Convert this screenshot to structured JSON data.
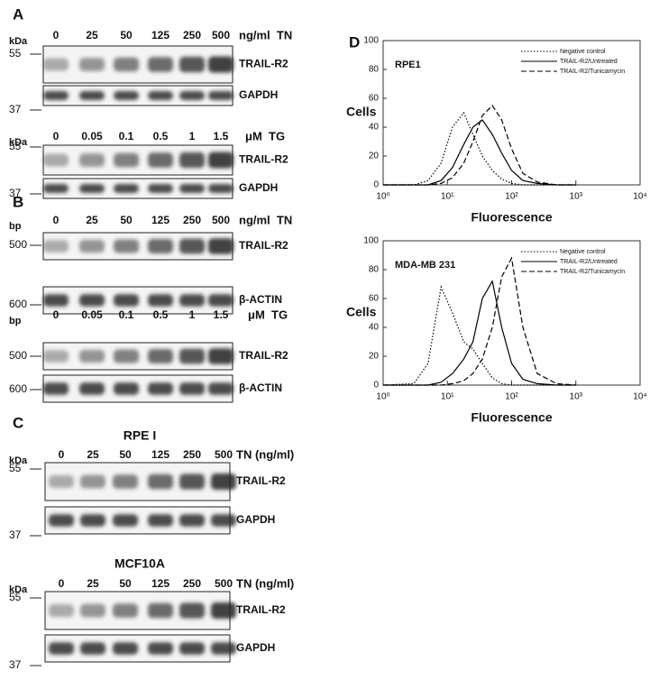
{
  "panel_A": {
    "letter": "A",
    "blots": [
      {
        "unit": "kDa",
        "lanes": [
          "0",
          "25",
          "50",
          "125",
          "250",
          "500"
        ],
        "treatment": "ng/ml  TN",
        "rows": [
          {
            "marker": "55",
            "band": "TRAIL-R2"
          },
          {
            "marker": "37",
            "band": "GAPDH"
          }
        ]
      },
      {
        "unit": "kDa",
        "lanes": [
          "0",
          "0.05",
          "0.1",
          "0.5",
          "1",
          "1.5"
        ],
        "treatment": "μM  TG",
        "rows": [
          {
            "marker": "55",
            "band": "TRAIL-R2"
          },
          {
            "marker": "37",
            "band": "GAPDH"
          }
        ]
      }
    ]
  },
  "panel_B": {
    "letter": "B",
    "blots": [
      {
        "unit": "bp",
        "lanes": [
          "0",
          "25",
          "50",
          "125",
          "250",
          "500"
        ],
        "treatment": "ng/ml  TN",
        "rows": [
          {
            "marker": "500",
            "band": "TRAIL-R2"
          },
          {
            "marker": "600",
            "band": "β-ACTIN"
          }
        ]
      },
      {
        "unit": "bp",
        "lanes": [
          "0",
          "0.05",
          "0.1",
          "0.5",
          "1",
          "1.5"
        ],
        "treatment": "μM  TG",
        "rows": [
          {
            "marker": "500",
            "band": "TRAIL-R2"
          },
          {
            "marker": "600",
            "band": "β-ACTIN"
          }
        ]
      }
    ]
  },
  "panel_C": {
    "letter": "C",
    "blots": [
      {
        "title": "RPE I",
        "unit": "kDa",
        "lanes": [
          "0",
          "25",
          "50",
          "125",
          "250",
          "500"
        ],
        "treatment": "TN (ng/ml)",
        "rows": [
          {
            "marker": "55",
            "band": "TRAIL-R2"
          },
          {
            "marker": "37",
            "band": "GAPDH"
          }
        ]
      },
      {
        "title": "MCF10A",
        "unit": "kDa",
        "lanes": [
          "0",
          "25",
          "50",
          "125",
          "250",
          "500"
        ],
        "treatment": "TN (ng/ml)",
        "rows": [
          {
            "marker": "55",
            "band": "TRAIL-R2"
          },
          {
            "marker": "37",
            "band": "GAPDH"
          }
        ]
      }
    ]
  },
  "panel_D": {
    "letter": "D"
  },
  "chart_data": [
    {
      "type": "line",
      "title": "RPE1",
      "xlabel": "Fluorescence",
      "ylabel": "Cells",
      "xscale": "log",
      "legend": "top-right",
      "xlim": [
        1,
        10000
      ],
      "xticks": [
        {
          "value": 1,
          "label": "10⁰"
        },
        {
          "value": 10,
          "label": "10¹"
        },
        {
          "value": 100,
          "label": "10²"
        },
        {
          "value": 1000,
          "label": "10³"
        },
        {
          "value": 10000,
          "label": "10⁴"
        }
      ],
      "ylim": [
        0,
        100
      ],
      "yticks": [
        0,
        20,
        40,
        60,
        80,
        100
      ],
      "x": [
        1,
        3,
        5,
        8,
        12,
        18,
        25,
        35,
        50,
        70,
        100,
        150,
        250,
        500,
        1000
      ],
      "series": [
        {
          "name": "Negative control",
          "color": "#000000",
          "dash": "dotted",
          "values": [
            0,
            0,
            3,
            15,
            40,
            50,
            35,
            20,
            10,
            4,
            1,
            0,
            0,
            0,
            0
          ]
        },
        {
          "name": "TRAIL-R2/Untreated",
          "color": "#000000",
          "dash": "solid",
          "values": [
            0,
            0,
            0,
            3,
            12,
            28,
            40,
            45,
            35,
            22,
            10,
            3,
            1,
            0,
            0
          ]
        },
        {
          "name": "TRAIL-R2/Tunicamycin",
          "color": "#000000",
          "dash": "dashed",
          "values": [
            0,
            0,
            0,
            1,
            5,
            15,
            30,
            48,
            55,
            45,
            25,
            8,
            2,
            0,
            0
          ]
        }
      ]
    },
    {
      "type": "line",
      "title": "MDA-MB 231",
      "xlabel": "Fluorescence",
      "ylabel": "Cells",
      "xscale": "log",
      "legend": "top-right",
      "xlim": [
        1,
        10000
      ],
      "xticks": [
        {
          "value": 1,
          "label": "10⁰"
        },
        {
          "value": 10,
          "label": "10¹"
        },
        {
          "value": 100,
          "label": "10²"
        },
        {
          "value": 1000,
          "label": "10³"
        },
        {
          "value": 10000,
          "label": "10⁴"
        }
      ],
      "ylim": [
        0,
        100
      ],
      "yticks": [
        0,
        20,
        40,
        60,
        80,
        100
      ],
      "x": [
        1,
        3,
        5,
        8,
        12,
        18,
        25,
        35,
        50,
        70,
        100,
        150,
        250,
        500,
        1000
      ],
      "series": [
        {
          "name": "Negative control",
          "color": "#000000",
          "dash": "dotted",
          "values": [
            0,
            1,
            15,
            68,
            50,
            30,
            25,
            15,
            5,
            1,
            0,
            0,
            0,
            0,
            0
          ]
        },
        {
          "name": "TRAIL-R2/Untreated",
          "color": "#000000",
          "dash": "solid",
          "values": [
            0,
            0,
            0,
            2,
            8,
            18,
            30,
            60,
            72,
            40,
            15,
            4,
            1,
            0,
            0
          ]
        },
        {
          "name": "TRAIL-R2/Tunicamycin",
          "color": "#000000",
          "dash": "dashed",
          "values": [
            0,
            0,
            0,
            0,
            1,
            3,
            8,
            18,
            40,
            75,
            88,
            40,
            8,
            1,
            0
          ]
        }
      ]
    }
  ]
}
